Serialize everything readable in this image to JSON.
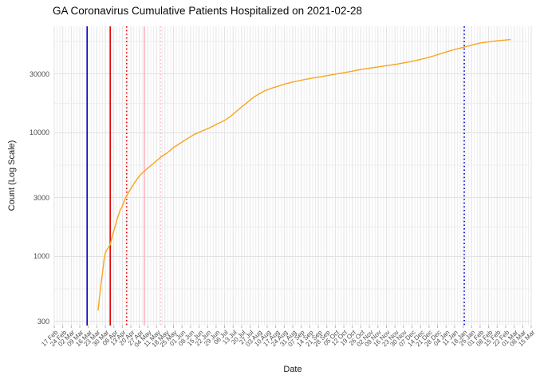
{
  "title": "GA Coronavirus Cumulative Patients Hospitalized on 2021-02-28",
  "chart_data": {
    "type": "line",
    "title": "GA Coronavirus Cumulative Patients Hospitalized on 2021-02-28",
    "xlabel": "Date",
    "ylabel": "Count (Log Scale)",
    "y_scale": "log10",
    "ylim": [
      276,
      72600
    ],
    "grid": true,
    "legend": "none",
    "x_tick_interval_days": 7,
    "x_tick_labels": [
      "17 Feb",
      "24 Feb",
      "02 Mar",
      "09 Mar",
      "16 Mar",
      "23 Mar",
      "30 Mar",
      "06 Apr",
      "13 Apr",
      "20 Apr",
      "27 Apr",
      "04 May",
      "11 May",
      "18 May",
      "25 May",
      "01 Jun",
      "08 Jun",
      "15 Jun",
      "22 Jun",
      "29 Jun",
      "06 Jul",
      "13 Jul",
      "20 Jul",
      "27 Jul",
      "03 Aug",
      "10 Aug",
      "17 Aug",
      "24 Aug",
      "31 Aug",
      "07 Sep",
      "14 Sep",
      "21 Sep",
      "28 Sep",
      "05 Oct",
      "12 Oct",
      "19 Oct",
      "26 Oct",
      "02 Nov",
      "09 Nov",
      "16 Nov",
      "23 Nov",
      "30 Nov",
      "07 Dec",
      "14 Dec",
      "21 Dec",
      "28 Dec",
      "04 Jan",
      "11 Jan",
      "18 Jan",
      "25 Jan",
      "01 Feb",
      "08 Feb",
      "15 Feb",
      "22 Feb",
      "01 Mar",
      "08 Mar",
      "15 Mar"
    ],
    "y_tick_labels": [
      "300",
      "1000",
      "3000",
      "10000",
      "30000"
    ],
    "y_major_gridlines": [
      300,
      1000,
      3000,
      10000,
      30000
    ],
    "y_minor_gridlines": [
      548,
      1732,
      5477,
      17321,
      54772
    ],
    "series": [
      {
        "name": "cumulative-patients-hospitalized",
        "color": "#F7A51E",
        "points_day_value": [
          [
            36,
            365
          ],
          [
            37,
            450
          ],
          [
            38,
            550
          ],
          [
            39,
            660
          ],
          [
            40,
            780
          ],
          [
            41,
            950
          ],
          [
            42,
            1070
          ],
          [
            43,
            1120
          ],
          [
            44,
            1160
          ],
          [
            45,
            1200
          ],
          [
            46,
            1250
          ],
          [
            47,
            1370
          ],
          [
            48,
            1500
          ],
          [
            50,
            1750
          ],
          [
            52,
            2050
          ],
          [
            54,
            2350
          ],
          [
            56,
            2550
          ],
          [
            58,
            2900
          ],
          [
            60,
            3150
          ],
          [
            63,
            3550
          ],
          [
            66,
            3950
          ],
          [
            69,
            4350
          ],
          [
            72,
            4700
          ],
          [
            74,
            4900
          ],
          [
            78,
            5300
          ],
          [
            82,
            5700
          ],
          [
            87,
            6300
          ],
          [
            93,
            6900
          ],
          [
            98,
            7600
          ],
          [
            104,
            8300
          ],
          [
            108,
            8800
          ],
          [
            115,
            9700
          ],
          [
            120,
            10200
          ],
          [
            127,
            10900
          ],
          [
            134,
            11800
          ],
          [
            140,
            12600
          ],
          [
            145,
            13600
          ],
          [
            150,
            15000
          ],
          [
            155,
            16500
          ],
          [
            158,
            17400
          ],
          [
            162,
            18800
          ],
          [
            166,
            20000
          ],
          [
            170,
            21100
          ],
          [
            173,
            21900
          ],
          [
            180,
            23200
          ],
          [
            184,
            23800
          ],
          [
            190,
            24900
          ],
          [
            195,
            25600
          ],
          [
            202,
            26500
          ],
          [
            206,
            27000
          ],
          [
            213,
            27800
          ],
          [
            217,
            28200
          ],
          [
            224,
            29000
          ],
          [
            231,
            29800
          ],
          [
            238,
            30600
          ],
          [
            245,
            31500
          ],
          [
            252,
            32500
          ],
          [
            259,
            33300
          ],
          [
            266,
            34100
          ],
          [
            273,
            34900
          ],
          [
            280,
            35700
          ],
          [
            287,
            36700
          ],
          [
            294,
            37800
          ],
          [
            301,
            39200
          ],
          [
            308,
            40800
          ],
          [
            315,
            42800
          ],
          [
            322,
            45000
          ],
          [
            329,
            47200
          ],
          [
            336,
            49000
          ],
          [
            343,
            51200
          ],
          [
            350,
            53200
          ],
          [
            357,
            54400
          ],
          [
            364,
            55500
          ],
          [
            371,
            56300
          ],
          [
            375,
            56800
          ]
        ]
      }
    ],
    "vlines": [
      {
        "name": "event-line-blue-solid",
        "day": 27,
        "color": "#0000CD",
        "style": "solid"
      },
      {
        "name": "event-line-red-solid",
        "day": 46,
        "color": "#E00000",
        "style": "solid"
      },
      {
        "name": "event-line-red-dotted",
        "day": 59.5,
        "color": "#E00000",
        "style": "dotted"
      },
      {
        "name": "event-line-pink-solid",
        "day": 74,
        "color": "#FFB6C1",
        "style": "solid"
      },
      {
        "name": "event-line-pink-dotted",
        "day": 87.5,
        "color": "#FFB6C1",
        "style": "dotted"
      },
      {
        "name": "event-line-blue-dotted",
        "day": 337,
        "color": "#0000CD",
        "style": "dotted"
      }
    ],
    "colors": {
      "grid_major": "#E2E2E2",
      "grid_minor": "#EDEDED",
      "axis_tick": "#B3B3B3",
      "tick_label_text": "#4D4D4D",
      "title_text": "#0A0A0A"
    }
  }
}
